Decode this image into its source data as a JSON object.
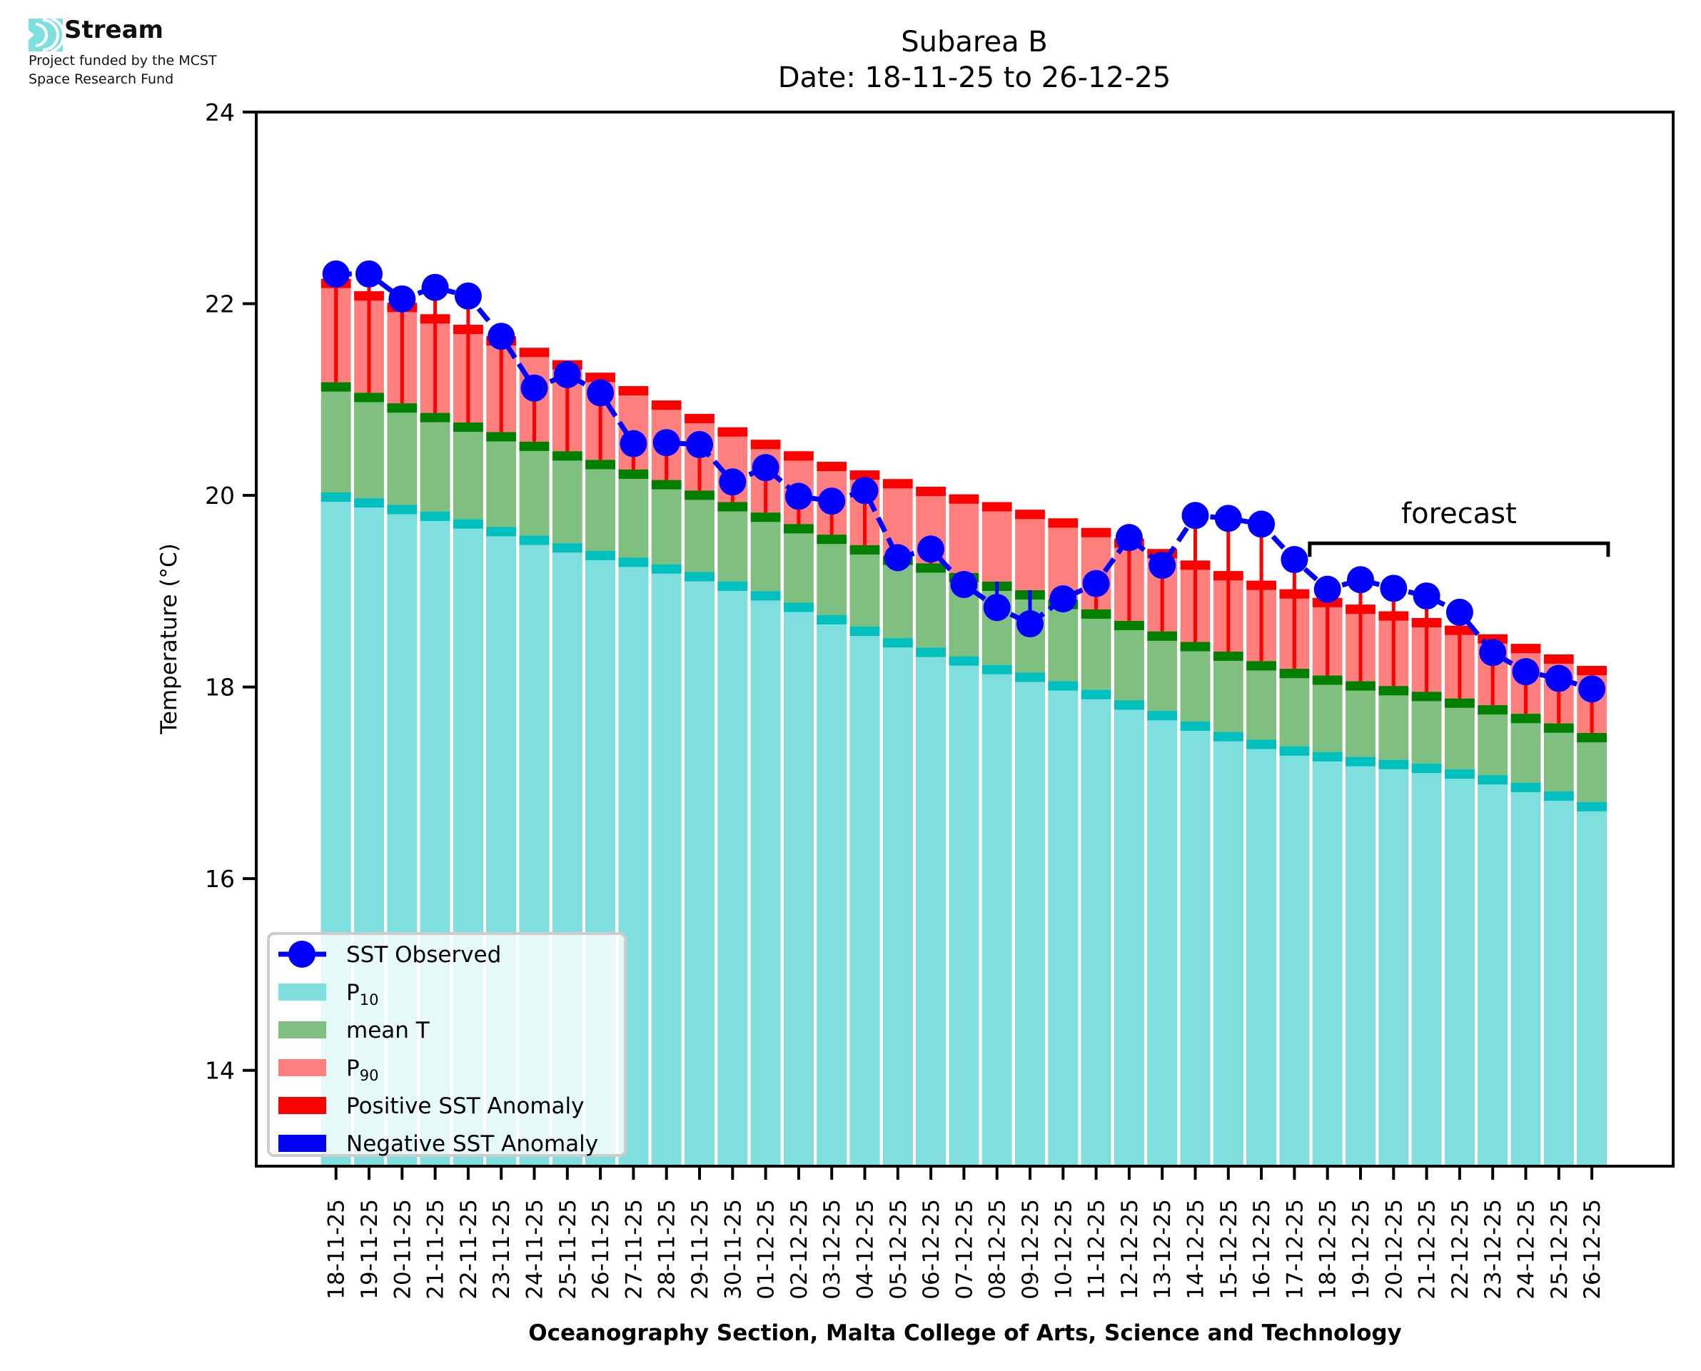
{
  "branding": {
    "logo_name": "Stream",
    "funding_line1": "Project funded by the MCST",
    "funding_line2": "Space Research Fund",
    "logo_color": "#7fdfdf"
  },
  "chart_data": {
    "type": "bar",
    "stacked": true,
    "title": "Subarea B",
    "subtitle": "Date: 18-11-25 to 26-12-25",
    "xlabel": "Oceanography Section, Malta College of Arts, Science and Technology",
    "ylabel": "Temperature (°C)",
    "ylim": [
      13,
      24
    ],
    "yticks": [
      14,
      16,
      18,
      20,
      22,
      24
    ],
    "grid": false,
    "legend_position": "lower-left",
    "categories": [
      "18-11-25",
      "19-11-25",
      "20-11-25",
      "21-11-25",
      "22-11-25",
      "23-11-25",
      "24-11-25",
      "25-11-25",
      "26-11-25",
      "27-11-25",
      "28-11-25",
      "29-11-25",
      "30-11-25",
      "01-12-25",
      "02-12-25",
      "03-12-25",
      "04-12-25",
      "05-12-25",
      "06-12-25",
      "07-12-25",
      "08-12-25",
      "09-12-25",
      "10-12-25",
      "11-12-25",
      "12-12-25",
      "13-12-25",
      "14-12-25",
      "15-12-25",
      "16-12-25",
      "17-12-25",
      "18-12-25",
      "19-12-25",
      "20-12-25",
      "21-12-25",
      "22-12-25",
      "23-12-25",
      "24-12-25",
      "25-12-25",
      "26-12-25"
    ],
    "series": [
      {
        "name": "P10",
        "label_main": "P",
        "label_sub": "10",
        "color": "#7fdfdf",
        "edge_color": "#00bfbf",
        "values": [
          20.03,
          19.97,
          19.9,
          19.83,
          19.75,
          19.67,
          19.58,
          19.5,
          19.42,
          19.35,
          19.28,
          19.2,
          19.1,
          19.0,
          18.88,
          18.75,
          18.63,
          18.51,
          18.41,
          18.32,
          18.23,
          18.15,
          18.06,
          17.97,
          17.86,
          17.75,
          17.64,
          17.53,
          17.45,
          17.38,
          17.32,
          17.27,
          17.24,
          17.2,
          17.14,
          17.08,
          17.0,
          16.91,
          16.8
        ]
      },
      {
        "name": "mean T",
        "label_main": "mean T",
        "label_sub": "",
        "color": "#7fbf7f",
        "edge_color": "#007f00",
        "values": [
          21.18,
          21.07,
          20.96,
          20.86,
          20.76,
          20.66,
          20.56,
          20.46,
          20.37,
          20.27,
          20.16,
          20.05,
          19.93,
          19.82,
          19.7,
          19.59,
          19.48,
          19.37,
          19.29,
          19.19,
          19.1,
          19.01,
          18.91,
          18.81,
          18.69,
          18.58,
          18.47,
          18.37,
          18.27,
          18.19,
          18.12,
          18.06,
          18.01,
          17.95,
          17.88,
          17.81,
          17.72,
          17.62,
          17.52
        ]
      },
      {
        "name": "P90",
        "label_main": "P",
        "label_sub": "90",
        "color": "#ff7f7f",
        "edge_color": "#ff0000",
        "values": [
          22.26,
          22.13,
          22.01,
          21.89,
          21.78,
          21.66,
          21.54,
          21.41,
          21.28,
          21.14,
          20.99,
          20.85,
          20.71,
          20.58,
          20.46,
          20.35,
          20.26,
          20.17,
          20.09,
          20.01,
          19.93,
          19.85,
          19.76,
          19.66,
          19.55,
          19.44,
          19.32,
          19.21,
          19.11,
          19.02,
          18.93,
          18.86,
          18.79,
          18.72,
          18.64,
          18.55,
          18.45,
          18.34,
          18.22
        ]
      },
      {
        "name": "SST Observed",
        "type": "line",
        "color": "#0000ff",
        "marker": "circle",
        "linestyle": "dashed",
        "values": [
          22.31,
          22.31,
          22.05,
          22.17,
          22.08,
          21.66,
          21.12,
          21.26,
          21.07,
          20.54,
          20.55,
          20.53,
          20.14,
          20.29,
          19.99,
          19.94,
          20.05,
          19.35,
          19.44,
          19.07,
          18.83,
          18.66,
          18.92,
          19.08,
          19.56,
          19.27,
          19.79,
          19.76,
          19.7,
          19.33,
          19.02,
          19.12,
          19.03,
          18.95,
          18.78,
          18.36,
          18.16,
          18.09,
          17.98
        ]
      }
    ],
    "anomaly": {
      "description": "Vertical segment between mean T and SST Observed",
      "positive_color": "#ff0000",
      "negative_color": "#0000ff"
    },
    "legend": [
      {
        "key": "sst",
        "label": "SST Observed",
        "sub": ""
      },
      {
        "key": "p10",
        "label": "P",
        "sub": "10"
      },
      {
        "key": "mean",
        "label": "mean T",
        "sub": ""
      },
      {
        "key": "p90",
        "label": "P",
        "sub": "90"
      },
      {
        "key": "pos",
        "label": "Positive SST Anomaly",
        "sub": ""
      },
      {
        "key": "neg",
        "label": "Negative SST Anomaly",
        "sub": ""
      }
    ],
    "annotation": {
      "text": "forecast",
      "start_category": "18-12-25",
      "end_category": "26-12-25",
      "bracket_y": 19.5
    }
  }
}
